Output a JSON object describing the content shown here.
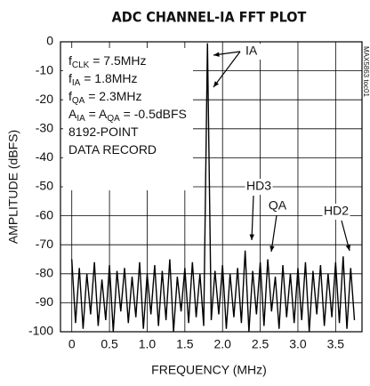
{
  "chart_data": {
    "type": "line",
    "title": "ADC CHANNEL-IA FFT PLOT",
    "x_label": "FREQUENCY (MHz)",
    "y_label": "AMPLITUDE (dBFS)",
    "side_note": "MAX5863 toc01",
    "conditions": [
      [
        "f",
        "CLK",
        " = 7.5MHz"
      ],
      [
        "f",
        "IA",
        " = 1.8MHz"
      ],
      [
        "f",
        "QA",
        " = 2.3MHz"
      ],
      [
        "A",
        "IA",
        " = A",
        "QA",
        " = -0.5dBFS"
      ],
      [
        "8192-POINT"
      ],
      [
        "DATA RECORD"
      ]
    ],
    "callouts": [
      "IA",
      "HD3",
      "QA",
      "HD2"
    ],
    "x": [
      0,
      0.05,
      0.1,
      0.15,
      0.2,
      0.25,
      0.3,
      0.35,
      0.4,
      0.45,
      0.5,
      0.55,
      0.6,
      0.65,
      0.7,
      0.75,
      0.8,
      0.85,
      0.9,
      0.95,
      1,
      1.05,
      1.1,
      1.15,
      1.2,
      1.25,
      1.3,
      1.35,
      1.4,
      1.45,
      1.5,
      1.55,
      1.6,
      1.65,
      1.7,
      1.75,
      1.8,
      1.85,
      1.9,
      1.95,
      2,
      2.05,
      2.1,
      2.15,
      2.2,
      2.25,
      2.3,
      2.35,
      2.4,
      2.45,
      2.5,
      2.55,
      2.6,
      2.65,
      2.7,
      2.75,
      2.8,
      2.85,
      2.9,
      2.95,
      3,
      3.05,
      3.1,
      3.15,
      3.2,
      3.25,
      3.3,
      3.35,
      3.4,
      3.45,
      3.5,
      3.55,
      3.6,
      3.65,
      3.7,
      3.75
    ],
    "series": [
      {
        "color": "#000000",
        "values": [
          -75,
          -97,
          -78,
          -99,
          -80,
          -94,
          -76,
          -98,
          -82,
          -96,
          -77,
          -100,
          -79,
          -93,
          -78,
          -97,
          -81,
          -95,
          -76,
          -99,
          -80,
          -94,
          -77,
          -98,
          -79,
          -96,
          -75,
          -100,
          -81,
          -93,
          -78,
          -97,
          -76,
          -95,
          -80,
          -98,
          -0.5,
          -96,
          -79,
          -94,
          -77,
          -99,
          -80,
          -95,
          -78,
          -97,
          -72,
          -100,
          -79,
          -94,
          -76,
          -98,
          -75,
          -93,
          -81,
          -99,
          -77,
          -95,
          -80,
          -97,
          -78,
          -96,
          -76,
          -100,
          -79,
          -94,
          -77,
          -98,
          -80,
          -95,
          -76,
          -97,
          -74,
          -99,
          -78,
          -96
        ]
      }
    ],
    "xlim": [
      -0.15,
      3.85
    ],
    "ylim": [
      -100,
      0
    ],
    "xticks": [
      0,
      0.5,
      {
        "value": 1,
        "label": "1.0"
      },
      1.5,
      {
        "value": 2,
        "label": "2.0"
      },
      2.5,
      {
        "value": 3,
        "label": "3.0"
      },
      3.5
    ],
    "yticks": [
      0,
      -10,
      -20,
      -30,
      -40,
      -50,
      -60,
      -70,
      -80,
      -90,
      -100
    ],
    "grid": true
  }
}
